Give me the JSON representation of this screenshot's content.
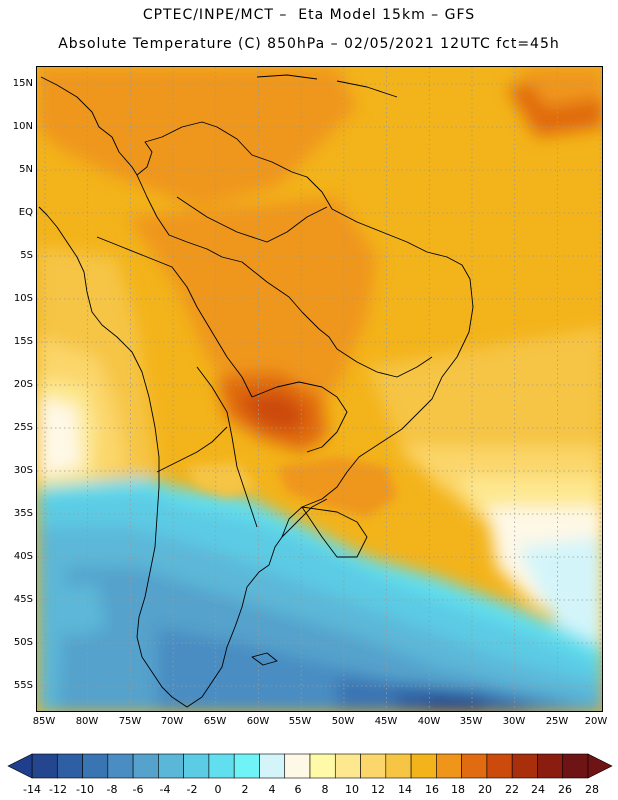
{
  "header": {
    "line1": "CPTEC/INPE/MCT –  Eta Model 15km – GFS",
    "line2": "Absolute Temperature (C) 850hPa – 02/05/2021 12UTC fct=45h"
  },
  "axes": {
    "lat_labels": [
      "15N",
      "10N",
      "5N",
      "EQ",
      "5S",
      "10S",
      "15S",
      "20S",
      "25S",
      "30S",
      "35S",
      "40S",
      "45S",
      "50S",
      "55S"
    ],
    "lon_labels": [
      "85W",
      "80W",
      "75W",
      "70W",
      "65W",
      "60W",
      "55W",
      "50W",
      "45W",
      "40W",
      "35W",
      "30W",
      "25W",
      "20W"
    ]
  },
  "colorbar": {
    "labels": [
      "-14",
      "-12",
      "-10",
      "-8",
      "-6",
      "-4",
      "-2",
      "0",
      "2",
      "4",
      "6",
      "8",
      "10",
      "12",
      "14",
      "16",
      "18",
      "20",
      "22",
      "24",
      "26",
      "28"
    ],
    "under_color": "#1f3f8c",
    "over_color": "#6e1414",
    "colors": [
      "#23468f",
      "#2e5ea3",
      "#3a75b3",
      "#4a8dc2",
      "#55a2cc",
      "#5bb7d8",
      "#5ccbe4",
      "#62dfee",
      "#6ff3f6",
      "#d3f5fa",
      "#fef8e6",
      "#fffaa8",
      "#fde890",
      "#fbd66a",
      "#f6c544",
      "#f3b31a",
      "#ef961a",
      "#e06b10",
      "#cc4a0c",
      "#a82e0c",
      "#8a1c10",
      "#6e1414"
    ]
  }
}
